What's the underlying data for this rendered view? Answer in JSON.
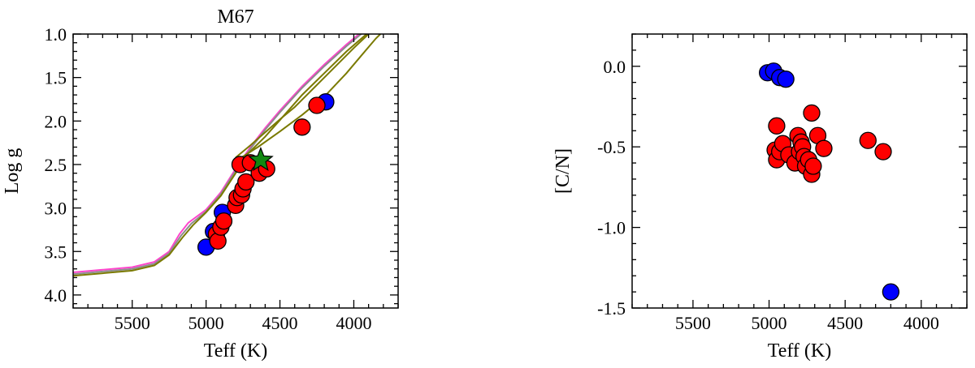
{
  "chart_data": [
    {
      "type": "scatter",
      "title": "M67",
      "xlabel": "Teff (K)",
      "ylabel": "Log g",
      "xlim": [
        5900,
        3700
      ],
      "ylim": [
        4.15,
        1.0
      ],
      "x_inverted": true,
      "y_inverted": true,
      "xticks": [
        5500,
        5000,
        4500,
        4000
      ],
      "xtick_labels": [
        "5500",
        "5000",
        "4500",
        "4000"
      ],
      "yticks": [
        1.0,
        1.5,
        2.0,
        2.5,
        3.0,
        3.5,
        4.0
      ],
      "ytick_labels": [
        "1.0",
        "1.5",
        "2.0",
        "2.5",
        "3.0",
        "3.5",
        "4.0"
      ],
      "colors": {
        "red": "#ff0000",
        "blue": "#0000ff",
        "star": "#118811",
        "iso_olive": "#7a7a00",
        "iso_grey": "#8c8c8c",
        "iso_pink": "#ff44cc"
      },
      "series": [
        {
          "color": "blue",
          "points": [
            [
              5000,
              3.45
            ],
            [
              4950,
              3.27
            ],
            [
              4890,
              3.05
            ],
            [
              4190,
              1.78
            ]
          ]
        },
        {
          "color": "red",
          "points": [
            [
              4930,
              3.3
            ],
            [
              4920,
              3.38
            ],
            [
              4900,
              3.22
            ],
            [
              4880,
              3.15
            ],
            [
              4800,
              2.97
            ],
            [
              4790,
              2.88
            ],
            [
              4760,
              2.85
            ],
            [
              4750,
              2.78
            ],
            [
              4730,
              2.7
            ],
            [
              4770,
              2.5
            ],
            [
              4700,
              2.48
            ],
            [
              4640,
              2.6
            ],
            [
              4590,
              2.55
            ],
            [
              4350,
              2.07
            ],
            [
              4250,
              1.82
            ]
          ]
        },
        {
          "color": "star",
          "marker": "star",
          "points": [
            [
              4630,
              2.45
            ]
          ]
        }
      ],
      "isochrones": [
        {
          "color": "iso_pink",
          "points": [
            [
              5900,
              3.74
            ],
            [
              5700,
              3.71
            ],
            [
              5500,
              3.68
            ],
            [
              5350,
              3.62
            ],
            [
              5250,
              3.5
            ],
            [
              5180,
              3.3
            ],
            [
              5120,
              3.17
            ],
            [
              5000,
              3.02
            ],
            [
              4900,
              2.82
            ],
            [
              4800,
              2.55
            ],
            [
              4700,
              2.3
            ],
            [
              4600,
              2.08
            ],
            [
              4500,
              1.88
            ],
            [
              4350,
              1.6
            ],
            [
              4200,
              1.35
            ],
            [
              4050,
              1.12
            ],
            [
              3950,
              0.98
            ]
          ]
        },
        {
          "color": "iso_grey",
          "points": [
            [
              5900,
              3.76
            ],
            [
              5700,
              3.73
            ],
            [
              5500,
              3.7
            ],
            [
              5350,
              3.64
            ],
            [
              5250,
              3.52
            ],
            [
              5170,
              3.32
            ],
            [
              5100,
              3.18
            ],
            [
              5000,
              3.04
            ],
            [
              4900,
              2.84
            ],
            [
              4800,
              2.57
            ],
            [
              4700,
              2.32
            ],
            [
              4600,
              2.1
            ],
            [
              4500,
              1.9
            ],
            [
              4350,
              1.62
            ],
            [
              4200,
              1.37
            ],
            [
              4050,
              1.14
            ],
            [
              3950,
              1.0
            ]
          ]
        },
        {
          "color": "iso_olive",
          "points": [
            [
              5900,
              3.78
            ],
            [
              5700,
              3.75
            ],
            [
              5500,
              3.72
            ],
            [
              5350,
              3.66
            ],
            [
              5250,
              3.54
            ],
            [
              5160,
              3.34
            ],
            [
              5090,
              3.2
            ],
            [
              5000,
              3.05
            ],
            [
              4900,
              2.86
            ],
            [
              4800,
              2.6
            ],
            [
              4720,
              2.38
            ],
            [
              4600,
              2.18
            ],
            [
              4500,
              1.99
            ],
            [
              4350,
              1.7
            ],
            [
              4200,
              1.45
            ],
            [
              4050,
              1.2
            ],
            [
              3900,
              0.98
            ]
          ]
        },
        {
          "color": "iso_olive",
          "points": [
            [
              4800,
              2.42
            ],
            [
              4700,
              2.28
            ],
            [
              4600,
              2.13
            ],
            [
              4500,
              1.98
            ],
            [
              4400,
              1.84
            ],
            [
              4300,
              1.67
            ],
            [
              4200,
              1.5
            ],
            [
              4100,
              1.33
            ],
            [
              4000,
              1.16
            ],
            [
              3900,
              1.0
            ]
          ]
        },
        {
          "color": "iso_olive",
          "points": [
            [
              4790,
              2.45
            ],
            [
              4650,
              2.3
            ],
            [
              4500,
              2.12
            ],
            [
              4350,
              1.93
            ],
            [
              4200,
              1.72
            ],
            [
              4050,
              1.45
            ],
            [
              3950,
              1.25
            ],
            [
              3850,
              1.05
            ],
            [
              3820,
              1.0
            ]
          ]
        }
      ]
    },
    {
      "type": "scatter",
      "xlabel": "Teff (K)",
      "ylabel": "[C/N]",
      "xlim": [
        5900,
        3700
      ],
      "ylim": [
        -1.5,
        0.2
      ],
      "x_inverted": true,
      "xticks": [
        5500,
        5000,
        4500,
        4000
      ],
      "xtick_labels": [
        "5500",
        "5000",
        "4500",
        "4000"
      ],
      "yticks": [
        0.0,
        -0.5,
        -1.0,
        -1.5
      ],
      "ytick_labels": [
        "0.0",
        "-0.5",
        "-1.0",
        "-1.5"
      ],
      "colors": {
        "red": "#ff0000",
        "blue": "#0000ff"
      },
      "series": [
        {
          "color": "blue",
          "points": [
            [
              5010,
              -0.04
            ],
            [
              4970,
              -0.03
            ],
            [
              4930,
              -0.07
            ],
            [
              4890,
              -0.08
            ],
            [
              4200,
              -1.4
            ]
          ]
        },
        {
          "color": "red",
          "points": [
            [
              4950,
              -0.37
            ],
            [
              4960,
              -0.52
            ],
            [
              4950,
              -0.58
            ],
            [
              4930,
              -0.53
            ],
            [
              4910,
              -0.48
            ],
            [
              4870,
              -0.55
            ],
            [
              4830,
              -0.6
            ],
            [
              4810,
              -0.43
            ],
            [
              4800,
              -0.53
            ],
            [
              4790,
              -0.47
            ],
            [
              4780,
              -0.5
            ],
            [
              4770,
              -0.56
            ],
            [
              4760,
              -0.62
            ],
            [
              4740,
              -0.58
            ],
            [
              4720,
              -0.67
            ],
            [
              4710,
              -0.62
            ],
            [
              4720,
              -0.29
            ],
            [
              4680,
              -0.43
            ],
            [
              4640,
              -0.51
            ],
            [
              4350,
              -0.46
            ],
            [
              4250,
              -0.53
            ]
          ]
        }
      ]
    }
  ]
}
